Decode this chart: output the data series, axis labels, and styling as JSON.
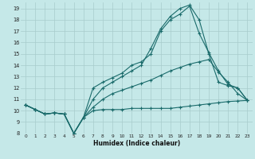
{
  "xlabel": "Humidex (Indice chaleur)",
  "background_color": "#c5e8e8",
  "grid_color": "#a8cccc",
  "line_color": "#1a6b6b",
  "xlim": [
    -0.5,
    23.5
  ],
  "ylim": [
    8,
    19.5
  ],
  "xticks": [
    0,
    1,
    2,
    3,
    4,
    5,
    6,
    7,
    8,
    9,
    10,
    11,
    12,
    13,
    14,
    15,
    16,
    17,
    18,
    19,
    20,
    21,
    22,
    23
  ],
  "yticks": [
    8,
    9,
    10,
    11,
    12,
    13,
    14,
    15,
    16,
    17,
    18,
    19
  ],
  "line1_x": [
    0,
    1,
    2,
    3,
    4,
    5,
    6,
    7,
    8,
    9,
    10,
    11,
    12,
    13,
    14,
    15,
    16,
    17,
    18,
    19,
    20,
    21,
    22,
    23
  ],
  "line1_y": [
    10.5,
    10.1,
    9.7,
    9.8,
    9.7,
    8.0,
    9.4,
    10.0,
    10.1,
    10.1,
    10.1,
    10.2,
    10.2,
    10.2,
    10.2,
    10.2,
    10.3,
    10.4,
    10.5,
    10.6,
    10.7,
    10.8,
    10.85,
    10.9
  ],
  "line2_x": [
    0,
    1,
    2,
    3,
    4,
    5,
    6,
    7,
    8,
    9,
    10,
    11,
    12,
    13,
    14,
    15,
    16,
    17,
    18,
    19,
    20,
    21,
    22,
    23
  ],
  "line2_y": [
    10.5,
    10.1,
    9.7,
    9.8,
    9.7,
    8.0,
    9.4,
    10.3,
    11.0,
    11.5,
    11.8,
    12.1,
    12.4,
    12.7,
    13.1,
    13.5,
    13.8,
    14.1,
    14.3,
    14.5,
    13.4,
    12.5,
    11.5,
    10.9
  ],
  "line3_x": [
    0,
    1,
    2,
    3,
    4,
    5,
    6,
    7,
    8,
    9,
    10,
    11,
    12,
    13,
    14,
    15,
    16,
    17,
    18,
    19,
    20,
    21,
    22,
    23
  ],
  "line3_y": [
    10.5,
    10.1,
    9.7,
    9.8,
    9.7,
    8.0,
    9.4,
    12.0,
    12.5,
    12.9,
    13.3,
    14.0,
    14.3,
    15.0,
    17.0,
    18.0,
    18.5,
    19.2,
    16.8,
    15.1,
    13.5,
    12.3,
    12.0,
    10.9
  ],
  "line4_x": [
    0,
    1,
    2,
    3,
    4,
    5,
    6,
    7,
    8,
    9,
    10,
    11,
    12,
    13,
    14,
    15,
    16,
    17,
    18,
    19,
    20,
    21,
    22,
    23
  ],
  "line4_y": [
    10.5,
    10.1,
    9.7,
    9.8,
    9.7,
    8.0,
    9.4,
    11.0,
    12.0,
    12.5,
    13.0,
    13.5,
    14.0,
    15.5,
    17.2,
    18.3,
    19.0,
    19.3,
    18.0,
    15.0,
    12.5,
    12.2,
    12.0,
    10.9
  ]
}
